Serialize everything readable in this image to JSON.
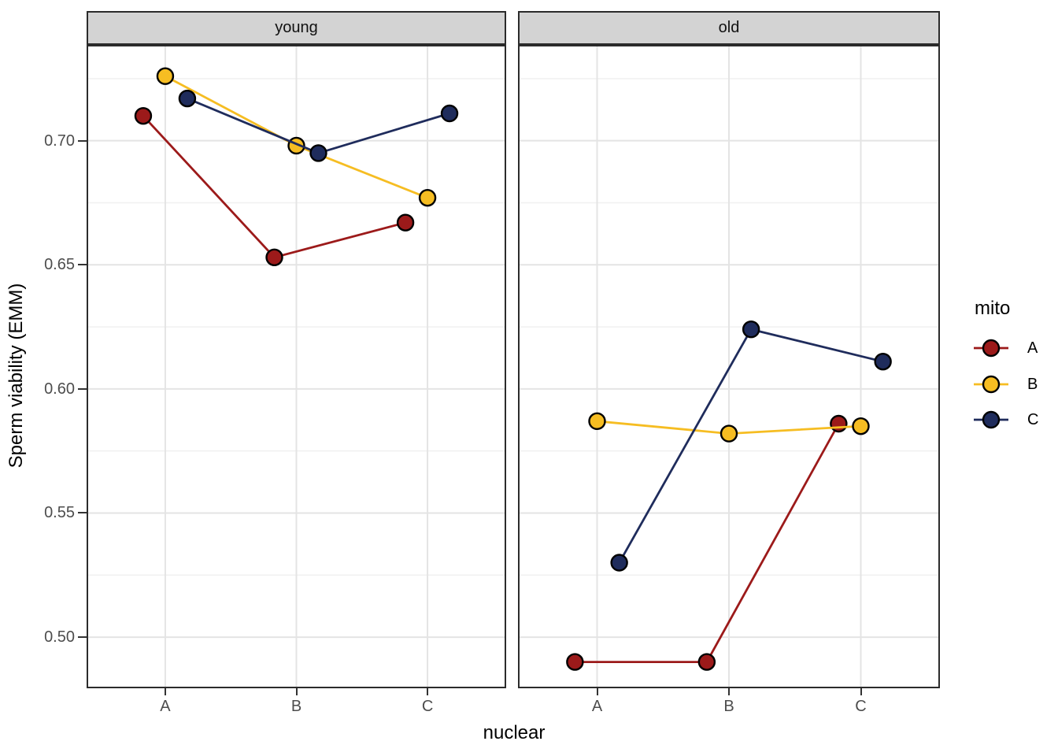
{
  "axes": {
    "x_title": "nuclear",
    "y_title": "Sperm viability (EMM)",
    "y_ticks": [
      {
        "label": "0.70",
        "value": 0.7
      },
      {
        "label": "0.65",
        "value": 0.65
      },
      {
        "label": "0.60",
        "value": 0.6
      },
      {
        "label": "0.55",
        "value": 0.55
      },
      {
        "label": "0.50",
        "value": 0.5
      }
    ]
  },
  "facets": [
    {
      "label": "young"
    },
    {
      "label": "old"
    }
  ],
  "legend": {
    "title": "mito",
    "entries": [
      {
        "label": "A",
        "color": "#9C1A1A"
      },
      {
        "label": "B",
        "color": "#F6BD22"
      },
      {
        "label": "C",
        "color": "#1F2C5C"
      }
    ]
  },
  "chart_data": {
    "type": "line",
    "facet_variable": "age",
    "facets": [
      "young",
      "old"
    ],
    "x_variable": "nuclear",
    "categories": [
      "A",
      "B",
      "C"
    ],
    "series": [
      {
        "name": "A",
        "color": "#9C1A1A",
        "values": {
          "young": [
            0.71,
            0.653,
            0.667
          ],
          "old": [
            0.49,
            0.49,
            0.586
          ]
        }
      },
      {
        "name": "B",
        "color": "#F6BD22",
        "values": {
          "young": [
            0.726,
            0.698,
            0.677
          ],
          "old": [
            0.587,
            0.582,
            0.585
          ]
        }
      },
      {
        "name": "C",
        "color": "#1F2C5C",
        "values": {
          "young": [
            0.717,
            0.695,
            0.711
          ],
          "old": [
            0.53,
            0.624,
            0.611
          ]
        }
      }
    ],
    "title": "",
    "xlabel": "nuclear",
    "ylabel": "Sperm viability (EMM)",
    "ylim": [
      0.4794,
      0.7386
    ],
    "y_major_gridlines": [
      0.5,
      0.55,
      0.6,
      0.65,
      0.7
    ],
    "y_minor_gridlines": [
      0.525,
      0.575,
      0.625,
      0.675,
      0.725
    ],
    "dodge_offset": 0.168,
    "grid": true,
    "legend_position": "right",
    "legend_title": "mito"
  },
  "style": {
    "strip_background": "#D3D3D3",
    "panel_border": "#2B2B2B",
    "grid_major": "#E4E4E4",
    "grid_minor": "#F0F0F0",
    "tick_label_color": "#4D4D4D",
    "point_outline": "#000000",
    "background": "#FFFFFF"
  }
}
